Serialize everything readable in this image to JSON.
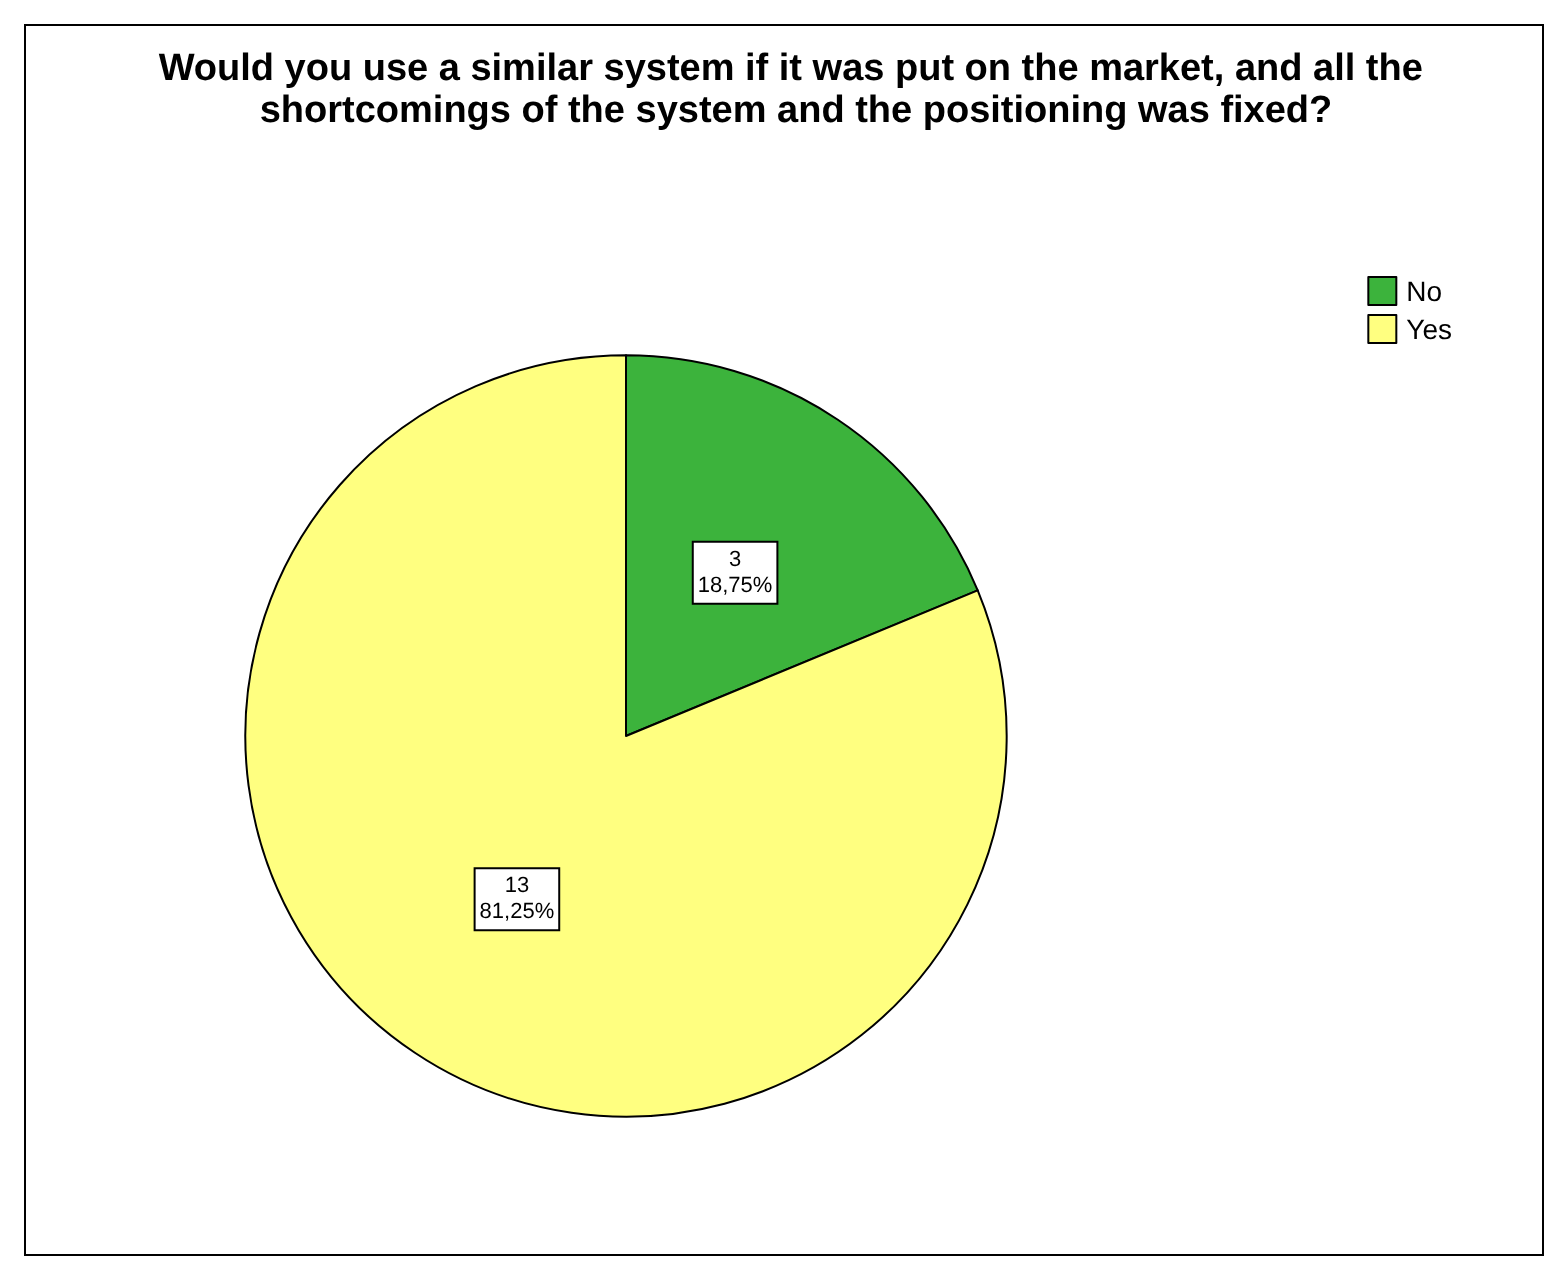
{
  "chart_data": {
    "type": "pie",
    "title": "Would you use a similar system if it was put on the market, and all the shortcomings of the system and the positioning was fixed?",
    "categories": [
      "No",
      "Yes"
    ],
    "values": [
      3,
      13
    ],
    "colors": [
      "#3cb33c",
      "#ffff80"
    ],
    "value_labels": [
      "3\n18,75%",
      "13\n81,25%"
    ],
    "legend": "top right"
  }
}
